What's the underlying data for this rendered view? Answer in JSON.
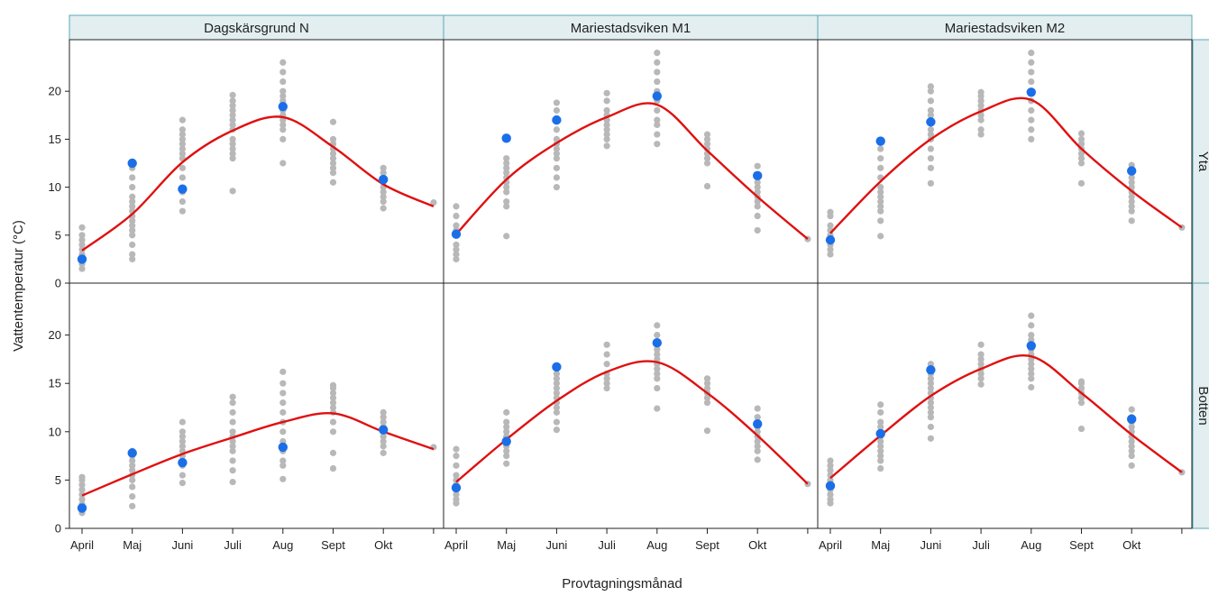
{
  "chart_data": {
    "type": "scatter",
    "xlabel": "Provtagningsmånad",
    "ylabel": "Vattentemperatur (°C)",
    "x_categories": [
      "April",
      "Maj",
      "Juni",
      "Juli",
      "Aug",
      "Sept",
      "Okt",
      ""
    ],
    "yticks": [
      0,
      5,
      10,
      15,
      20
    ],
    "ylim": [
      0,
      25
    ],
    "grid": false,
    "colors": {
      "history_points": "#b8b8b8",
      "current_year_points": "#1a6fe8",
      "trend_line": "#e01010",
      "strip_background": "#e2eef0",
      "strip_border": "#5aa8b4"
    },
    "panels": [
      {
        "station": "Dagskärsgrund N",
        "depth": "Yta",
        "current": [
          2.5,
          12.5,
          9.8,
          null,
          18.4,
          null,
          10.8
        ],
        "trend": [
          3.4,
          7.2,
          12.6,
          15.9,
          17.3,
          14.2,
          10.3,
          8.0
        ],
        "history": [
          [
            1.5,
            2,
            2.5,
            3,
            3.5,
            4,
            4.5,
            5,
            5.8
          ],
          [
            2.5,
            3,
            4,
            5,
            5.5,
            6,
            6.5,
            7,
            7.5,
            8,
            8.5,
            9,
            10,
            11,
            12
          ],
          [
            7.5,
            8.5,
            9.5,
            11,
            12,
            13,
            13.5,
            14,
            14.5,
            15,
            15.5,
            16,
            17
          ],
          [
            9.6,
            13,
            13.5,
            14,
            14.5,
            15,
            16,
            16.5,
            17,
            17.5,
            18,
            18.5,
            19,
            19.6
          ],
          [
            12.5,
            15,
            16,
            16.5,
            17,
            17.5,
            18,
            18.5,
            19,
            19.5,
            20,
            21,
            22,
            23
          ],
          [
            10.5,
            11.5,
            12,
            12.5,
            13,
            13.5,
            14,
            14.5,
            15,
            16.8
          ],
          [
            7.8,
            8.5,
            9,
            9.5,
            10,
            10.5,
            11,
            11.5,
            12
          ],
          [
            8.4
          ]
        ]
      },
      {
        "station": "Mariestadsviken  M1",
        "depth": "Yta",
        "current": [
          5.1,
          15.1,
          17.0,
          null,
          19.5,
          null,
          11.2
        ],
        "trend": [
          5.1,
          10.8,
          14.6,
          17.3,
          18.6,
          13.8,
          9.0,
          4.6
        ],
        "history": [
          [
            2.5,
            3,
            3.5,
            4,
            5,
            5.5,
            6,
            7,
            8
          ],
          [
            4.9,
            8,
            8.5,
            9.5,
            10,
            10.5,
            11,
            11.5,
            12,
            12.5,
            13
          ],
          [
            10,
            11,
            12,
            13,
            13.5,
            14,
            14.5,
            15,
            16,
            17,
            18,
            18.8
          ],
          [
            14.3,
            15,
            15.5,
            16,
            16.5,
            17,
            17.5,
            18,
            19,
            19.8
          ],
          [
            14.5,
            15.5,
            16.5,
            17,
            18,
            19,
            20,
            21,
            22,
            23,
            24
          ],
          [
            10.1,
            12.5,
            13,
            13.5,
            14,
            14.5,
            15,
            15.5
          ],
          [
            5.5,
            7,
            8,
            8.5,
            9,
            9.5,
            10,
            10.5,
            11,
            12.2
          ],
          [
            4.6
          ]
        ]
      },
      {
        "station": "Mariestadsviken  M2",
        "depth": "Yta",
        "current": [
          4.5,
          14.8,
          16.8,
          null,
          19.9,
          null,
          11.7
        ],
        "trend": [
          5.2,
          10.6,
          15.0,
          17.9,
          19.1,
          14.0,
          9.6,
          5.8
        ],
        "history": [
          [
            3,
            3.5,
            4,
            4.5,
            5,
            5.5,
            6,
            7,
            7.4
          ],
          [
            4.9,
            6.5,
            7.5,
            8,
            8.5,
            9,
            9.5,
            10,
            11,
            12,
            13,
            14
          ],
          [
            10.4,
            12,
            13,
            14,
            15,
            15.5,
            16,
            17,
            17.5,
            18,
            19,
            20,
            20.5
          ],
          [
            15.5,
            16,
            17,
            17.5,
            18,
            18.5,
            19,
            19.5,
            19.9
          ],
          [
            15,
            16,
            17,
            18,
            19,
            20,
            21,
            22,
            23,
            24
          ],
          [
            10.4,
            12.5,
            13,
            13.5,
            14,
            14.5,
            15,
            15.6
          ],
          [
            6.5,
            7.5,
            8,
            8.5,
            9,
            9.5,
            10,
            10.5,
            11,
            12.3
          ],
          [
            5.8
          ]
        ]
      },
      {
        "station": "Dagskärsgrund N",
        "depth": "Botten",
        "current": [
          2.1,
          7.8,
          6.8,
          null,
          8.4,
          null,
          10.2
        ],
        "trend": [
          3.4,
          5.6,
          7.7,
          9.4,
          11.0,
          11.9,
          10.0,
          8.2
        ],
        "history": [
          [
            1.6,
            2,
            2.5,
            3,
            3.5,
            4,
            4.5,
            5,
            5.3
          ],
          [
            2.3,
            3.3,
            4.3,
            5,
            5.5,
            6,
            6.5,
            7,
            7.5,
            8
          ],
          [
            4.7,
            5.5,
            6.5,
            7,
            7.5,
            8,
            8.5,
            9,
            9.5,
            10,
            11
          ],
          [
            4.8,
            6,
            7,
            8,
            8.5,
            9,
            9.5,
            10,
            11,
            12,
            13,
            13.6
          ],
          [
            5.1,
            6.5,
            7,
            8,
            9,
            10,
            11,
            12,
            13,
            14,
            15,
            16.2
          ],
          [
            6.2,
            7.8,
            10,
            11,
            12,
            12.5,
            13,
            13.5,
            14,
            14.5,
            14.8
          ],
          [
            7.8,
            8.5,
            9,
            9.5,
            10,
            10.5,
            11,
            11.5,
            12
          ],
          [
            8.4
          ]
        ]
      },
      {
        "station": "Mariestadsviken  M1",
        "depth": "Botten",
        "current": [
          4.2,
          9.0,
          16.7,
          null,
          19.2,
          null,
          10.8
        ],
        "trend": [
          4.8,
          9.2,
          13.2,
          16.2,
          17.2,
          14.0,
          9.6,
          4.6
        ],
        "history": [
          [
            2.6,
            3,
            3.5,
            4,
            4.5,
            5,
            5.5,
            6.5,
            7.5,
            8.2
          ],
          [
            6.7,
            7.5,
            8,
            8.5,
            9,
            9.5,
            10,
            10.5,
            11,
            12
          ],
          [
            10.2,
            11,
            12,
            12.5,
            13,
            13.5,
            14,
            14.5,
            15,
            15.5,
            16
          ],
          [
            14.5,
            15,
            15.5,
            16,
            17,
            18,
            19
          ],
          [
            12.4,
            14.5,
            15.5,
            16,
            16.5,
            17,
            17.5,
            18,
            18.5,
            19,
            20,
            21
          ],
          [
            10.1,
            13,
            13.5,
            14,
            14.5,
            15,
            15.5
          ],
          [
            7.1,
            8,
            8.5,
            9,
            9.5,
            10,
            10.5,
            11,
            11.5,
            12.4
          ],
          [
            4.6
          ]
        ]
      },
      {
        "station": "Mariestadsviken  M2",
        "depth": "Botten",
        "current": [
          4.4,
          9.8,
          16.4,
          null,
          18.9,
          null,
          11.3
        ],
        "trend": [
          5.2,
          9.6,
          13.7,
          16.5,
          17.8,
          14.0,
          9.7,
          5.8
        ],
        "history": [
          [
            2.6,
            3,
            3.5,
            4,
            4.5,
            5,
            5.5,
            6,
            6.5,
            7
          ],
          [
            6.2,
            7,
            7.5,
            8,
            8.5,
            9,
            9.5,
            10,
            10.5,
            11,
            12,
            12.8
          ],
          [
            9.3,
            10.5,
            11.5,
            12,
            12.5,
            13,
            13.5,
            14,
            14.5,
            15,
            15.5,
            16,
            17
          ],
          [
            14.9,
            15.5,
            16,
            16.5,
            17,
            17.5,
            18,
            19
          ],
          [
            14.6,
            15.5,
            16,
            16.5,
            17,
            17.5,
            18,
            18.5,
            19,
            19.5,
            20,
            21,
            22
          ],
          [
            10.3,
            13,
            13.5,
            14,
            14.5,
            15,
            15.2
          ],
          [
            6.5,
            7.5,
            8,
            8.5,
            9,
            9.5,
            10,
            10.5,
            11,
            11.5,
            12.3
          ],
          [
            5.8
          ]
        ]
      }
    ]
  }
}
